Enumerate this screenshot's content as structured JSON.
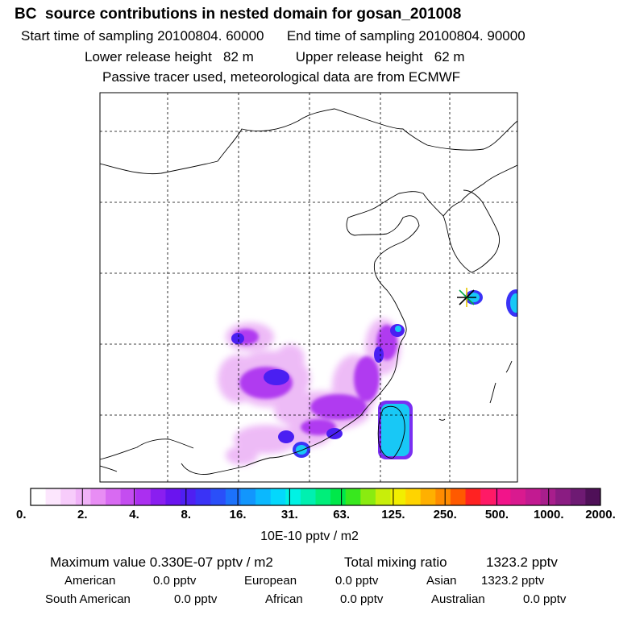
{
  "header": {
    "title": "BC  source contributions in nested domain for gosan_201008",
    "start_label": "Start time of sampling 20100804. 60000",
    "end_label": "End time of sampling 20100804. 90000",
    "lower_release": "Lower release height   82 m",
    "upper_release": "Upper release height   62 m",
    "tracer_note": "Passive tracer used, meteorological data are from ECMWF"
  },
  "colorbar": {
    "tick_labels": [
      "0.",
      "2.",
      "4.",
      "8.",
      "16.",
      "31.",
      "63.",
      "125.",
      "250.",
      "500.",
      "1000.",
      "2000."
    ],
    "units": "10E-10 pptv / m2",
    "colors": [
      "#ffffff",
      "#fce6fd",
      "#f7ccfb",
      "#f0b2f8",
      "#e88df4",
      "#d86af2",
      "#c44df0",
      "#ab2ff0",
      "#8a1ef0",
      "#6a14ef",
      "#4f1ff2",
      "#3a33f6",
      "#2a4ff9",
      "#1c72fb",
      "#1296fd",
      "#0bb8fe",
      "#04d8fc",
      "#00f2e4",
      "#00f0b0",
      "#00ee7a",
      "#00e84a",
      "#38e81e",
      "#8aeb10",
      "#c8ee0a",
      "#f2ee00",
      "#ffd400",
      "#ffb000",
      "#ff8c00",
      "#ff5a00",
      "#ff2222",
      "#ff1a66",
      "#f2148a",
      "#d91a8f",
      "#c21a91",
      "#a81e8c",
      "#8a1c82",
      "#6e1a73",
      "#4f1058"
    ]
  },
  "footer": {
    "max_label": "Maximum value  0.330E-07 pptv / m2",
    "total_label": "Total mixing ratio",
    "total_value": "1323.2 pptv",
    "regions": [
      {
        "name": "American",
        "value": "0.0 pptv"
      },
      {
        "name": "European",
        "value": "0.0 pptv"
      },
      {
        "name": "Asian",
        "value": "1323.2 pptv"
      },
      {
        "name": "South American",
        "value": "0.0 pptv"
      },
      {
        "name": "African",
        "value": "0.0 pptv"
      },
      {
        "name": "Australian",
        "value": "0.0 pptv"
      }
    ]
  }
}
